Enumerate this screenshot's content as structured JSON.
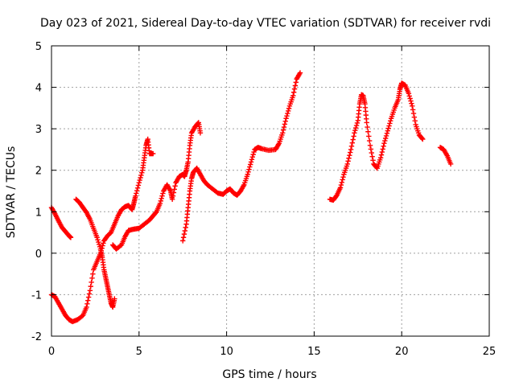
{
  "chart_data": {
    "type": "scatter",
    "title": "Day 023 of 2021, Sidereal Day-to-day VTEC variation (SDTVAR) for receiver rvdi",
    "xlabel": "GPS time / hours",
    "ylabel": "SDTVAR / TECUs",
    "xlim": [
      0,
      25
    ],
    "ylim": [
      -2,
      5
    ],
    "xticks": [
      0,
      5,
      10,
      15,
      20,
      25
    ],
    "yticks": [
      -2,
      -1,
      0,
      1,
      2,
      3,
      4,
      5
    ],
    "grid": true,
    "marker": "+",
    "colors": {
      "series": "#ff0000",
      "grid": "#a0a0a0",
      "axis": "#000000"
    },
    "series": [
      {
        "segments": [
          [
            [
              0.0,
              1.1
            ],
            [
              0.2,
              0.95
            ],
            [
              0.4,
              0.78
            ],
            [
              0.6,
              0.62
            ],
            [
              0.8,
              0.52
            ],
            [
              1.0,
              0.42
            ],
            [
              1.1,
              0.38
            ]
          ],
          [
            [
              0.0,
              -1.0
            ],
            [
              0.2,
              -1.05
            ],
            [
              0.4,
              -1.2
            ],
            [
              0.6,
              -1.35
            ],
            [
              0.8,
              -1.5
            ],
            [
              1.0,
              -1.6
            ],
            [
              1.2,
              -1.65
            ],
            [
              1.5,
              -1.6
            ],
            [
              1.8,
              -1.5
            ],
            [
              2.0,
              -1.3
            ],
            [
              2.2,
              -0.9
            ],
            [
              2.4,
              -0.4
            ],
            [
              2.6,
              -0.2
            ],
            [
              2.8,
              0.0
            ],
            [
              3.0,
              0.3
            ],
            [
              3.2,
              0.42
            ],
            [
              3.4,
              0.5
            ],
            [
              3.6,
              0.7
            ],
            [
              3.8,
              0.9
            ],
            [
              4.0,
              1.05
            ],
            [
              4.2,
              1.12
            ],
            [
              4.4,
              1.15
            ],
            [
              4.6,
              1.05
            ],
            [
              4.7,
              1.2
            ],
            [
              4.8,
              1.38
            ],
            [
              5.0,
              1.7
            ],
            [
              5.2,
              2.0
            ],
            [
              5.3,
              2.3
            ],
            [
              5.4,
              2.6
            ],
            [
              5.5,
              2.75
            ],
            [
              5.6,
              2.4
            ],
            [
              5.8,
              2.4
            ]
          ],
          [
            [
              1.4,
              1.3
            ],
            [
              1.6,
              1.22
            ],
            [
              1.8,
              1.1
            ],
            [
              2.0,
              0.98
            ],
            [
              2.2,
              0.82
            ],
            [
              2.4,
              0.6
            ],
            [
              2.6,
              0.38
            ],
            [
              2.8,
              0.1
            ],
            [
              2.9,
              -0.1
            ],
            [
              3.0,
              -0.4
            ],
            [
              3.1,
              -0.6
            ],
            [
              3.2,
              -0.8
            ],
            [
              3.3,
              -1.0
            ],
            [
              3.4,
              -1.2
            ],
            [
              3.5,
              -1.3
            ],
            [
              3.6,
              -1.1
            ]
          ],
          [
            [
              3.5,
              0.2
            ],
            [
              3.7,
              0.1
            ],
            [
              4.0,
              0.2
            ],
            [
              4.2,
              0.4
            ],
            [
              4.4,
              0.55
            ],
            [
              4.7,
              0.58
            ],
            [
              5.0,
              0.6
            ],
            [
              5.3,
              0.7
            ],
            [
              5.6,
              0.8
            ],
            [
              5.8,
              0.9
            ],
            [
              6.0,
              1.0
            ],
            [
              6.2,
              1.2
            ],
            [
              6.4,
              1.5
            ],
            [
              6.6,
              1.65
            ],
            [
              6.8,
              1.5
            ],
            [
              6.9,
              1.3
            ],
            [
              7.1,
              1.7
            ],
            [
              7.3,
              1.85
            ],
            [
              7.5,
              1.9
            ],
            [
              7.6,
              1.85
            ],
            [
              7.7,
              2.0
            ],
            [
              7.8,
              2.2
            ],
            [
              7.9,
              2.6
            ],
            [
              8.0,
              2.9
            ],
            [
              8.2,
              3.05
            ],
            [
              8.4,
              3.15
            ],
            [
              8.5,
              2.9
            ]
          ],
          [
            [
              7.5,
              0.3
            ],
            [
              7.7,
              0.7
            ],
            [
              7.8,
              1.1
            ],
            [
              7.9,
              1.5
            ],
            [
              8.0,
              1.8
            ],
            [
              8.1,
              1.95
            ],
            [
              8.3,
              2.05
            ],
            [
              8.5,
              1.9
            ],
            [
              8.7,
              1.75
            ],
            [
              8.9,
              1.65
            ],
            [
              9.2,
              1.55
            ],
            [
              9.5,
              1.45
            ],
            [
              9.8,
              1.42
            ],
            [
              10.0,
              1.5
            ],
            [
              10.2,
              1.55
            ],
            [
              10.4,
              1.45
            ],
            [
              10.6,
              1.4
            ],
            [
              10.8,
              1.5
            ],
            [
              11.0,
              1.65
            ],
            [
              11.2,
              1.9
            ],
            [
              11.4,
              2.2
            ],
            [
              11.6,
              2.5
            ],
            [
              11.8,
              2.55
            ],
            [
              12.0,
              2.52
            ],
            [
              12.4,
              2.48
            ],
            [
              12.8,
              2.5
            ],
            [
              13.0,
              2.65
            ],
            [
              13.2,
              2.9
            ],
            [
              13.4,
              3.25
            ],
            [
              13.6,
              3.55
            ],
            [
              13.8,
              3.8
            ],
            [
              14.0,
              4.2
            ],
            [
              14.2,
              4.35
            ]
          ],
          [
            [
              15.9,
              1.3
            ],
            [
              16.1,
              1.28
            ],
            [
              16.3,
              1.4
            ],
            [
              16.5,
              1.58
            ],
            [
              16.7,
              1.9
            ],
            [
              16.9,
              2.15
            ],
            [
              17.1,
              2.5
            ],
            [
              17.3,
              2.9
            ],
            [
              17.5,
              3.2
            ],
            [
              17.6,
              3.6
            ],
            [
              17.7,
              3.82
            ],
            [
              17.8,
              3.8
            ],
            [
              17.9,
              3.6
            ],
            [
              18.0,
              3.15
            ],
            [
              18.2,
              2.6
            ],
            [
              18.4,
              2.15
            ],
            [
              18.6,
              2.05
            ],
            [
              18.8,
              2.3
            ],
            [
              19.0,
              2.65
            ],
            [
              19.2,
              2.95
            ],
            [
              19.4,
              3.25
            ],
            [
              19.6,
              3.5
            ],
            [
              19.8,
              3.7
            ],
            [
              19.9,
              3.95
            ],
            [
              20.0,
              4.1
            ],
            [
              20.2,
              4.05
            ],
            [
              20.4,
              3.85
            ],
            [
              20.6,
              3.55
            ],
            [
              20.8,
              3.1
            ],
            [
              21.0,
              2.85
            ],
            [
              21.2,
              2.75
            ]
          ],
          [
            [
              22.2,
              2.55
            ],
            [
              22.4,
              2.5
            ],
            [
              22.6,
              2.35
            ],
            [
              22.8,
              2.15
            ]
          ]
        ]
      }
    ]
  }
}
